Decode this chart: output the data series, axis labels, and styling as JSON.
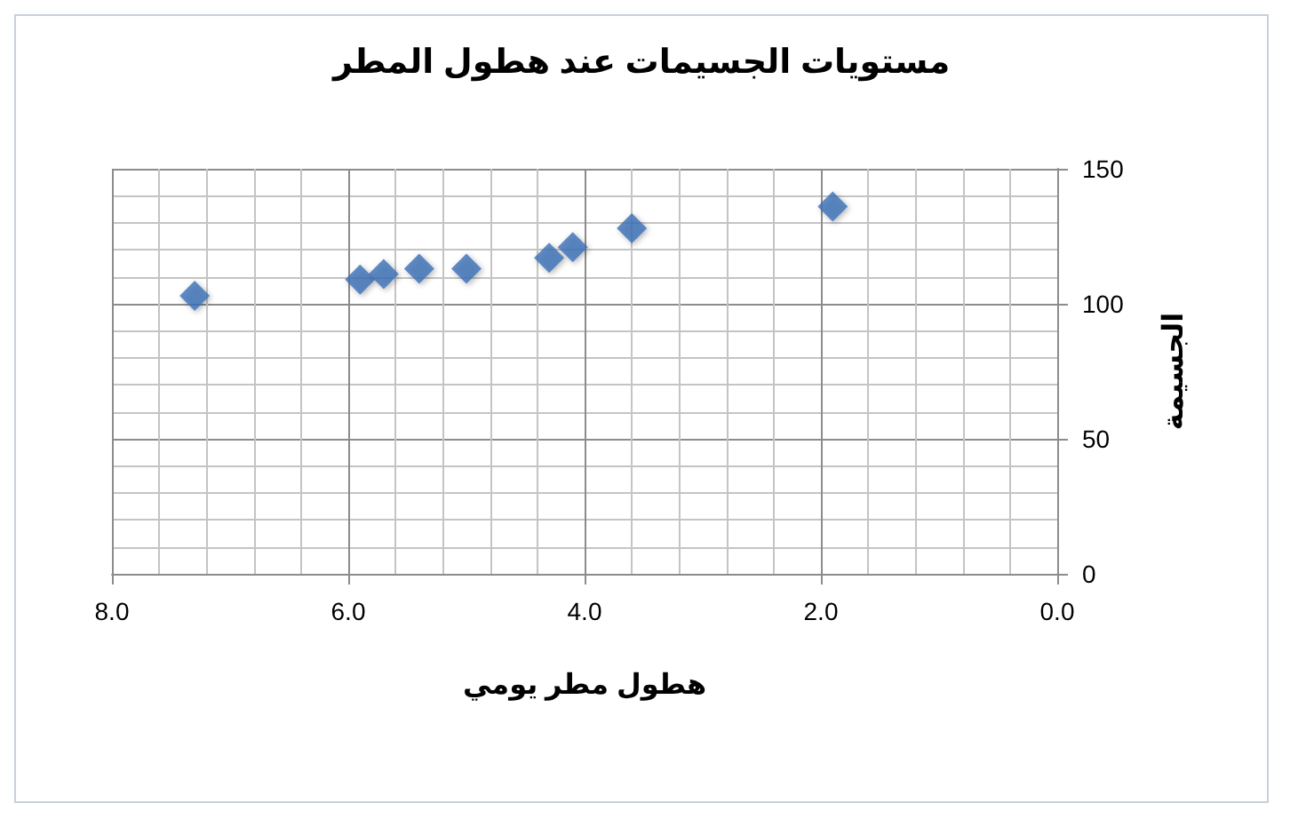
{
  "chart_data": {
    "type": "scatter",
    "title": "مستويات الجسيمات عند هطول المطر",
    "xlabel": "هطول مطر يومي",
    "ylabel": "الجسيمة",
    "x": [
      7.3,
      5.9,
      5.7,
      5.4,
      5.0,
      4.3,
      4.1,
      3.6,
      1.9
    ],
    "series": [
      {
        "color": "#3b6fb6",
        "values": [
          103,
          109,
          111,
          113,
          113,
          117,
          121,
          128,
          136
        ]
      }
    ],
    "xlim": [
      8,
      0
    ],
    "xticks": [
      {
        "value": 8,
        "label": "8.0"
      },
      {
        "value": 6,
        "label": "6.0"
      },
      {
        "value": 4,
        "label": "4.0"
      },
      {
        "value": 2,
        "label": "2.0"
      },
      {
        "value": 0,
        "label": "0.0"
      }
    ],
    "ylim": [
      0,
      150
    ],
    "yticks": [
      0,
      50,
      100,
      150
    ],
    "grid": true,
    "marker": "diamond"
  }
}
